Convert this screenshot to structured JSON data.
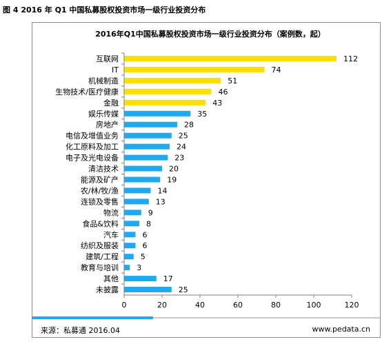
{
  "figure_title": "图 4 2016 年 Q1 中国私募股权投资市场一级行业投资分布",
  "footer": {
    "source": "来源：私募通 2016.04",
    "website": "www.pedata.cn"
  },
  "colors": {
    "highlight": "#fedf00",
    "normal": "#1eaaf1",
    "axis": "#7f7f7f",
    "grid": "#d9d9d9"
  },
  "chart_data": {
    "type": "bar",
    "orientation": "horizontal",
    "title": "2016年Q1中国私募股权投资市场一级行业投资分布（案例数，起）",
    "xlabel": "",
    "ylabel": "",
    "xlim": [
      0,
      120
    ],
    "xticks": [
      0,
      20,
      40,
      60,
      80,
      100,
      120
    ],
    "grid": false,
    "categories": [
      "互联网",
      "IT",
      "机械制造",
      "生物技术/医疗健康",
      "金融",
      "娱乐传媒",
      "房地产",
      "电信及增值业务",
      "化工原料及加工",
      "电子及光电设备",
      "清洁技术",
      "能源及矿产",
      "农/林/牧/渔",
      "连锁及零售",
      "物流",
      "食品&饮料",
      "汽车",
      "纺织及服装",
      "建筑/工程",
      "教育与培训",
      "其他",
      "未披露"
    ],
    "values": [
      112,
      74,
      51,
      46,
      43,
      35,
      28,
      25,
      24,
      23,
      20,
      19,
      14,
      13,
      9,
      8,
      6,
      6,
      5,
      3,
      17,
      25
    ],
    "highlighted_top": 5
  }
}
